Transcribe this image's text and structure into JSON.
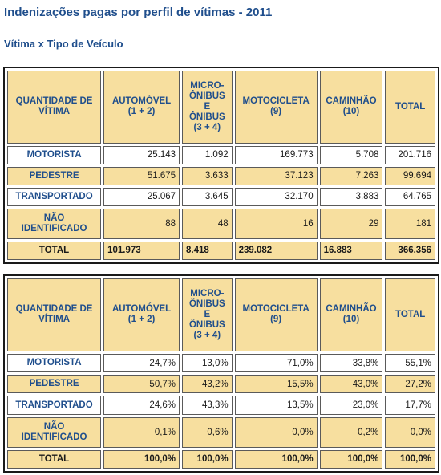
{
  "title": "Indenizações pagas por perfil de vítimas - 2011",
  "subtitle": "Vítima x Tipo de Veículo",
  "tables": [
    {
      "headers": [
        "QUANTIDADE DE\nVÍTIMA",
        "AUTOMÓVEL\n(1 + 2)",
        "MICRO-\nÔNIBUS\nE\nÔNIBUS\n(3 + 4)",
        "MOTOCICLETA\n(9)",
        "CAMINHÃO\n(10)",
        "TOTAL"
      ],
      "rows": [
        [
          "MOTORISTA",
          "25.143",
          "1.092",
          "169.773",
          "5.708",
          "201.716"
        ],
        [
          "PEDESTRE",
          "51.675",
          "3.633",
          "37.123",
          "7.263",
          "99.694"
        ],
        [
          "TRANSPORTADO",
          "25.067",
          "3.645",
          "32.170",
          "3.883",
          "64.765"
        ],
        [
          "NÃO\nIDENTIFICADO",
          "88",
          "48",
          "16",
          "29",
          "181"
        ]
      ],
      "total": [
        "TOTAL",
        "101.973",
        "8.418",
        "239.082",
        "16.883",
        "366.356"
      ]
    },
    {
      "headers": [
        "QUANTIDADE DE\nVÍTIMA",
        "AUTOMÓVEL\n(1 + 2)",
        "MICRO-\nÔNIBUS\nE\nÔNIBUS\n(3 + 4)",
        "MOTOCICLETA\n(9)",
        "CAMINHÃO\n(10)",
        "TOTAL"
      ],
      "rows": [
        [
          "MOTORISTA",
          "24,7%",
          "13,0%",
          "71,0%",
          "33,8%",
          "55,1%"
        ],
        [
          "PEDESTRE",
          "50,7%",
          "43,2%",
          "15,5%",
          "43,0%",
          "27,2%"
        ],
        [
          "TRANSPORTADO",
          "24,6%",
          "43,3%",
          "13,5%",
          "23,0%",
          "17,7%"
        ],
        [
          "NÃO\nIDENTIFICADO",
          "0,1%",
          "0,6%",
          "0,0%",
          "0,2%",
          "0,0%"
        ]
      ],
      "total": [
        "TOTAL",
        "100,0%",
        "100,0%",
        "100,0%",
        "100,0%",
        "100,0%"
      ]
    }
  ]
}
